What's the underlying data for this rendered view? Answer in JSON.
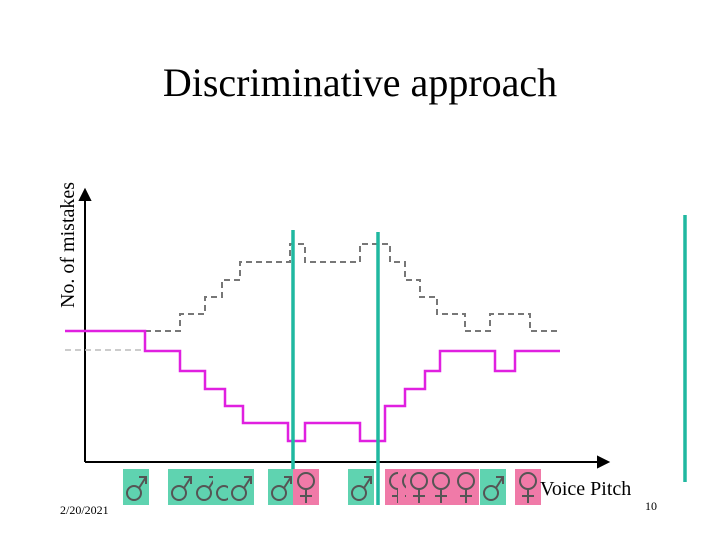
{
  "header": {
    "title": "Discriminative approach"
  },
  "axes": {
    "y_label": "No. of mistakes",
    "x_label": "Voice Pitch"
  },
  "footer": {
    "date": "2/20/2021",
    "page": "10"
  }
}
